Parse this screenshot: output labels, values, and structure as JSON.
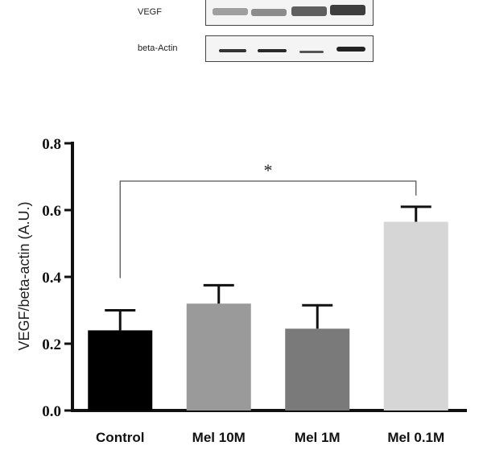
{
  "blot": {
    "rows": [
      {
        "label": "VEGF"
      },
      {
        "label": "beta-Actin"
      }
    ]
  },
  "chart_data": {
    "type": "bar",
    "categories": [
      "Control",
      "Mel 10M",
      "Mel 1M",
      "Mel 0.1M"
    ],
    "values": [
      0.24,
      0.32,
      0.245,
      0.565
    ],
    "errors": [
      0.06,
      0.055,
      0.07,
      0.045
    ],
    "colors": [
      "#000000",
      "#9a9a9a",
      "#7a7a7a",
      "#d6d6d6"
    ],
    "ylabel": "VEGF/beta-actin (A.U.)",
    "ylim": [
      0,
      0.8
    ],
    "yticks": [
      "0.0",
      "0.2",
      "0.4",
      "0.6",
      "0.8"
    ],
    "grid": false,
    "annotation": {
      "text": "*",
      "from": "Control",
      "to": "Mel 0.1M"
    }
  }
}
